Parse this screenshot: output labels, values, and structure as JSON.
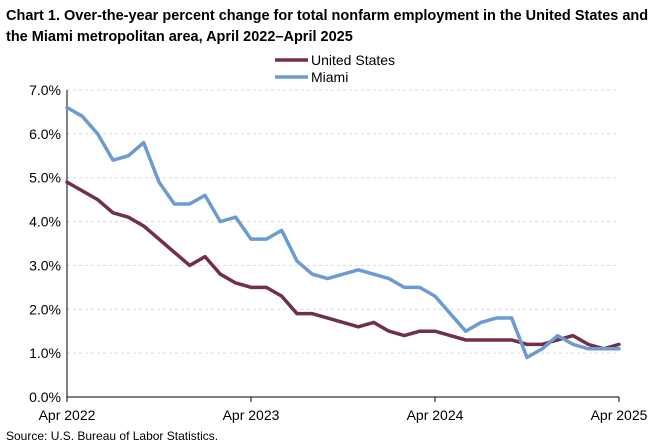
{
  "chart_data": {
    "type": "line",
    "title": "Chart 1. Over-the-year percent change for total nonfarm employment in the United States and the Miami metropolitan area, April 2022–April 2025",
    "xlabel": "",
    "ylabel": "",
    "ylim": [
      0,
      7
    ],
    "y_ticks": [
      "0.0%",
      "1.0%",
      "2.0%",
      "3.0%",
      "4.0%",
      "5.0%",
      "6.0%",
      "7.0%"
    ],
    "y_tick_values": [
      0,
      1,
      2,
      3,
      4,
      5,
      6,
      7
    ],
    "x_ticks": [
      "Apr 2022",
      "Apr 2023",
      "Apr 2024",
      "Apr 2025"
    ],
    "x_tick_indices": [
      0,
      12,
      24,
      36
    ],
    "gridlines": "horizontal",
    "legend_position": "top-right",
    "categories": [
      "Apr 2022",
      "May 2022",
      "Jun 2022",
      "Jul 2022",
      "Aug 2022",
      "Sep 2022",
      "Oct 2022",
      "Nov 2022",
      "Dec 2022",
      "Jan 2023",
      "Feb 2023",
      "Mar 2023",
      "Apr 2023",
      "May 2023",
      "Jun 2023",
      "Jul 2023",
      "Aug 2023",
      "Sep 2023",
      "Oct 2023",
      "Nov 2023",
      "Dec 2023",
      "Jan 2024",
      "Feb 2024",
      "Mar 2024",
      "Apr 2024",
      "May 2024",
      "Jun 2024",
      "Jul 2024",
      "Aug 2024",
      "Sep 2024",
      "Oct 2024",
      "Nov 2024",
      "Dec 2024",
      "Jan 2025",
      "Feb 2025",
      "Mar 2025",
      "Apr 2025"
    ],
    "series": [
      {
        "name": "United States",
        "color": "#722F4D",
        "values": [
          4.9,
          4.7,
          4.5,
          4.2,
          4.1,
          3.9,
          3.6,
          3.3,
          3.0,
          3.2,
          2.8,
          2.6,
          2.5,
          2.5,
          2.3,
          1.9,
          1.9,
          1.8,
          1.7,
          1.6,
          1.7,
          1.5,
          1.4,
          1.5,
          1.5,
          1.4,
          1.3,
          1.3,
          1.3,
          1.3,
          1.2,
          1.2,
          1.3,
          1.4,
          1.2,
          1.1,
          1.2
        ]
      },
      {
        "name": "Miami",
        "color": "#6B9BD1",
        "values": [
          6.6,
          6.4,
          6.0,
          5.4,
          5.5,
          5.8,
          4.9,
          4.4,
          4.4,
          4.6,
          4.0,
          4.1,
          3.6,
          3.6,
          3.8,
          3.1,
          2.8,
          2.7,
          2.8,
          2.9,
          2.8,
          2.7,
          2.5,
          2.5,
          2.3,
          1.9,
          1.5,
          1.7,
          1.8,
          1.8,
          0.9,
          1.1,
          1.4,
          1.2,
          1.1,
          1.1,
          1.1
        ]
      }
    ]
  },
  "source": "Source: U.S. Bureau of Labor Statistics."
}
